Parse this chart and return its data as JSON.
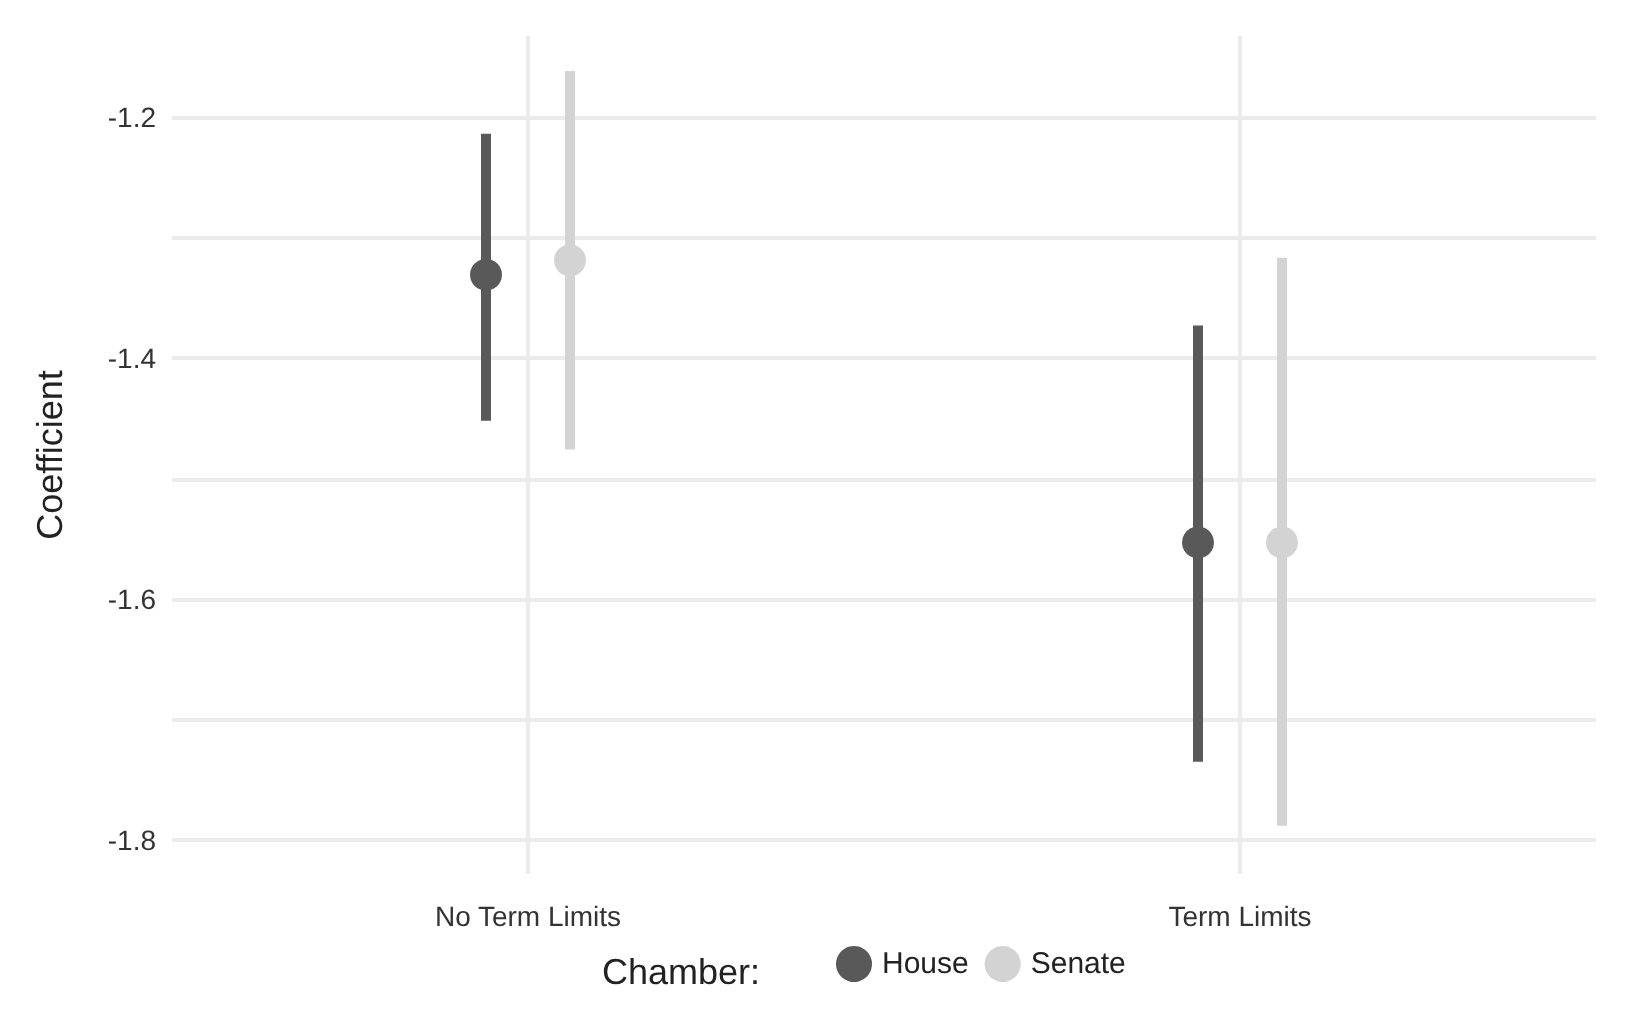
{
  "chart_data": {
    "type": "scatter",
    "ylabel": "Coefficient",
    "legend_title": "Chamber:",
    "categories": [
      "No Term Limits",
      "Term Limits"
    ],
    "series": [
      {
        "name": "House",
        "color": "#595959",
        "values": [
          -1.331,
          -1.553
        ],
        "errors": [
          [
            -1.452,
            -1.214
          ],
          [
            -1.735,
            -1.373
          ]
        ]
      },
      {
        "name": "Senate",
        "color": "#d3d3d3",
        "values": [
          -1.319,
          -1.553
        ],
        "errors": [
          [
            -1.476,
            -1.162
          ],
          [
            -1.788,
            -1.317
          ]
        ]
      }
    ],
    "ylim": [
      -1.828,
      -1.133
    ],
    "yticks": [
      {
        "value": -1.8,
        "label": "-1.8"
      },
      {
        "value": -1.7,
        "label": null
      },
      {
        "value": -1.6,
        "label": "-1.6"
      },
      {
        "value": -1.5,
        "label": null
      },
      {
        "value": -1.4,
        "label": "-1.4"
      },
      {
        "value": -1.3,
        "label": null
      },
      {
        "value": -1.2,
        "label": "-1.2"
      }
    ],
    "grid": true,
    "legend": "bottom",
    "marker": "circle"
  }
}
